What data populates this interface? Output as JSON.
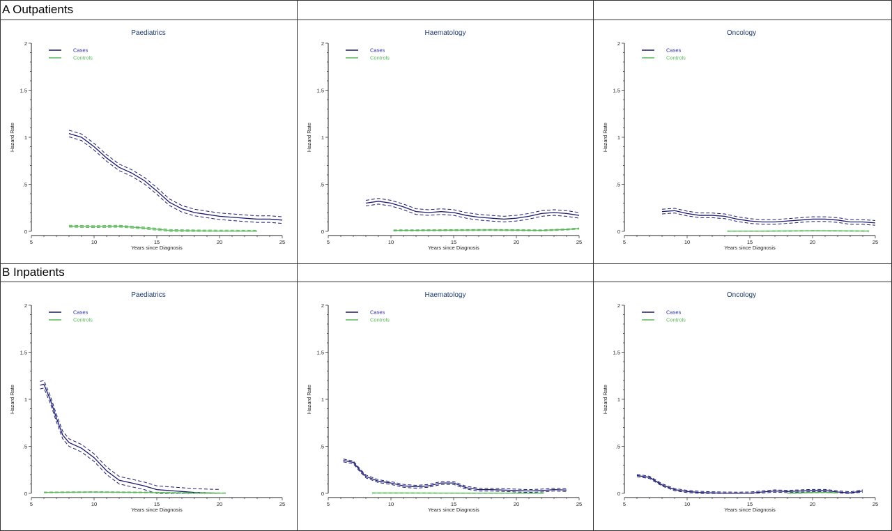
{
  "sections": [
    {
      "label": "A Outpatients"
    },
    {
      "label": "B Inpatients"
    }
  ],
  "colors": {
    "cases": "#1a1a6e",
    "controls": "#5cb85c",
    "title": "#1f3a6e"
  },
  "chart_data": [
    {
      "type": "line",
      "title": "Paediatrics",
      "xlabel": "Years since Diagnosis",
      "ylabel": "Hazard Rate",
      "xlim": [
        5,
        25
      ],
      "ylim": [
        0,
        2
      ],
      "xticks": [
        5,
        10,
        15,
        20,
        25
      ],
      "yticks": [
        0,
        0.5,
        1,
        1.5,
        2
      ],
      "yticklabels": [
        "0",
        ".5",
        "1",
        "1.5",
        "2"
      ],
      "legend": [
        "Cases",
        "Controls"
      ],
      "series": [
        {
          "name": "Cases",
          "x": [
            8,
            9,
            10,
            11,
            12,
            13,
            14,
            15,
            16,
            17,
            18,
            19,
            20,
            21,
            22,
            23,
            24,
            25
          ],
          "y": [
            1.04,
            1.0,
            0.9,
            0.78,
            0.68,
            0.62,
            0.54,
            0.43,
            0.31,
            0.24,
            0.2,
            0.18,
            0.16,
            0.15,
            0.14,
            0.13,
            0.13,
            0.12
          ],
          "band": 0.035
        },
        {
          "name": "Controls",
          "x": [
            8,
            10,
            12,
            14,
            16,
            18,
            20,
            23
          ],
          "y": [
            0.055,
            0.05,
            0.055,
            0.035,
            0.01,
            0.005,
            0.003,
            0.002
          ],
          "band": 0.01
        }
      ]
    },
    {
      "type": "line",
      "title": "Haematology",
      "xlabel": "Years since Diagnosis",
      "ylabel": "Hazard Rate",
      "xlim": [
        5,
        25
      ],
      "ylim": [
        0,
        2
      ],
      "xticks": [
        5,
        10,
        15,
        20,
        25
      ],
      "yticks": [
        0,
        0.5,
        1,
        1.5,
        2
      ],
      "yticklabels": [
        "0",
        ".5",
        "1",
        "1.5",
        "2"
      ],
      "legend": [
        "Cases",
        "Controls"
      ],
      "series": [
        {
          "name": "Cases",
          "x": [
            8,
            9,
            10,
            11,
            12,
            13,
            14,
            15,
            16,
            17,
            18,
            19,
            20,
            21,
            22,
            23,
            24,
            25
          ],
          "y": [
            0.3,
            0.32,
            0.3,
            0.26,
            0.21,
            0.2,
            0.21,
            0.2,
            0.17,
            0.15,
            0.14,
            0.13,
            0.14,
            0.16,
            0.19,
            0.2,
            0.19,
            0.17
          ],
          "band": 0.03
        },
        {
          "name": "Controls",
          "x": [
            10.2,
            14,
            18,
            22,
            24,
            25
          ],
          "y": [
            0.01,
            0.012,
            0.015,
            0.01,
            0.02,
            0.03
          ],
          "band": 0.006
        }
      ]
    },
    {
      "type": "line",
      "title": "Oncology",
      "xlabel": "Years since Diagnosis",
      "ylabel": "Hazard Rate",
      "xlim": [
        5,
        25
      ],
      "ylim": [
        0,
        2
      ],
      "xticks": [
        5,
        10,
        15,
        20,
        25
      ],
      "yticks": [
        0,
        0.5,
        1,
        1.5,
        2
      ],
      "yticklabels": [
        "0",
        ".5",
        "1",
        "1.5",
        "2"
      ],
      "legend": [
        "Cases",
        "Controls"
      ],
      "series": [
        {
          "name": "Cases",
          "x": [
            8,
            9,
            10,
            11,
            12,
            13,
            14,
            15,
            16,
            17,
            18,
            19,
            20,
            21,
            22,
            23,
            24,
            25
          ],
          "y": [
            0.21,
            0.22,
            0.19,
            0.17,
            0.17,
            0.16,
            0.13,
            0.11,
            0.1,
            0.1,
            0.11,
            0.12,
            0.13,
            0.13,
            0.12,
            0.1,
            0.1,
            0.09
          ],
          "band": 0.025
        },
        {
          "name": "Controls",
          "x": [
            13.2,
            16,
            18,
            20,
            22,
            24.5
          ],
          "y": [
            0.002,
            0.002,
            0.004,
            0.006,
            0.005,
            0.003
          ],
          "band": 0.003
        }
      ]
    },
    {
      "type": "line",
      "title": "Paediatrics",
      "xlabel": "Years since Diagnosis",
      "ylabel": "Hazard Rate",
      "xlim": [
        5,
        25
      ],
      "ylim": [
        0,
        2
      ],
      "xticks": [
        5,
        10,
        15,
        20,
        25
      ],
      "yticks": [
        0,
        0.5,
        1,
        1.5,
        2
      ],
      "yticklabels": [
        "0",
        ".5",
        "1",
        "1.5",
        "2"
      ],
      "legend": [
        "Cases",
        "Controls"
      ],
      "series": [
        {
          "name": "Cases",
          "x": [
            5.7,
            6,
            6.5,
            7,
            7.5,
            8,
            9,
            10,
            11,
            12,
            13,
            14,
            15,
            16,
            17,
            18,
            19,
            20
          ],
          "y": [
            1.15,
            1.16,
            1.0,
            0.8,
            0.62,
            0.54,
            0.48,
            0.38,
            0.24,
            0.14,
            0.11,
            0.08,
            0.04,
            0.03,
            0.02,
            0.01,
            0.005,
            0.002
          ],
          "band": 0.04
        },
        {
          "name": "Controls",
          "x": [
            6,
            8,
            10,
            12,
            14,
            16,
            18,
            20.5
          ],
          "y": [
            0.01,
            0.012,
            0.014,
            0.012,
            0.01,
            0.006,
            0.003,
            0.001
          ],
          "band": 0.004
        }
      ]
    },
    {
      "type": "line",
      "title": "Haematology",
      "xlabel": "Years since Diagnosis",
      "ylabel": "Hazard Rate",
      "xlim": [
        5,
        25
      ],
      "ylim": [
        0,
        2
      ],
      "xticks": [
        5,
        10,
        15,
        20,
        25
      ],
      "yticks": [
        0,
        0.5,
        1,
        1.5,
        2
      ],
      "yticklabels": [
        "0",
        ".5",
        "1",
        "1.5",
        "2"
      ],
      "legend": [
        "Cases",
        "Controls"
      ],
      "series": [
        {
          "name": "Cases",
          "x": [
            6.2,
            7,
            7.5,
            8,
            9,
            10,
            11,
            12,
            13,
            14,
            15,
            16,
            17,
            18,
            19,
            20,
            21,
            22,
            23,
            24
          ],
          "y": [
            0.35,
            0.33,
            0.25,
            0.18,
            0.13,
            0.11,
            0.08,
            0.07,
            0.08,
            0.11,
            0.11,
            0.06,
            0.04,
            0.04,
            0.035,
            0.03,
            0.025,
            0.03,
            0.04,
            0.035
          ],
          "band": 0.015
        },
        {
          "name": "Controls",
          "x": [
            8.5,
            11,
            14,
            17,
            20,
            22.2
          ],
          "y": [
            0.004,
            0.004,
            0.003,
            0.002,
            0.002,
            0.001
          ],
          "band": 0.002
        }
      ]
    },
    {
      "type": "line",
      "title": "Oncology",
      "xlabel": "Years since Diagnosis",
      "ylabel": "Hazard Rate",
      "xlim": [
        5,
        25
      ],
      "ylim": [
        0,
        2
      ],
      "xticks": [
        5,
        10,
        15,
        20,
        25
      ],
      "yticks": [
        0,
        0.5,
        1,
        1.5,
        2
      ],
      "yticklabels": [
        "0",
        ".5",
        "1",
        "1.5",
        "2"
      ],
      "legend": [
        "Cases",
        "Controls"
      ],
      "series": [
        {
          "name": "Cases",
          "x": [
            6,
            7,
            8,
            9,
            10,
            11,
            12,
            13,
            14,
            15,
            16,
            17,
            18,
            19,
            20,
            21,
            22,
            23,
            24
          ],
          "y": [
            0.19,
            0.17,
            0.09,
            0.04,
            0.02,
            0.01,
            0.005,
            0.002,
            0.001,
            0.002,
            0.015,
            0.025,
            0.02,
            0.025,
            0.03,
            0.03,
            0.015,
            0.005,
            0.025
          ],
          "band": 0.012
        },
        {
          "name": "Controls",
          "x": [
            18,
            19,
            20,
            21,
            22
          ],
          "y": [
            0.001,
            0.004,
            0.008,
            0.01,
            0.004
          ],
          "band": 0.003
        }
      ]
    }
  ]
}
